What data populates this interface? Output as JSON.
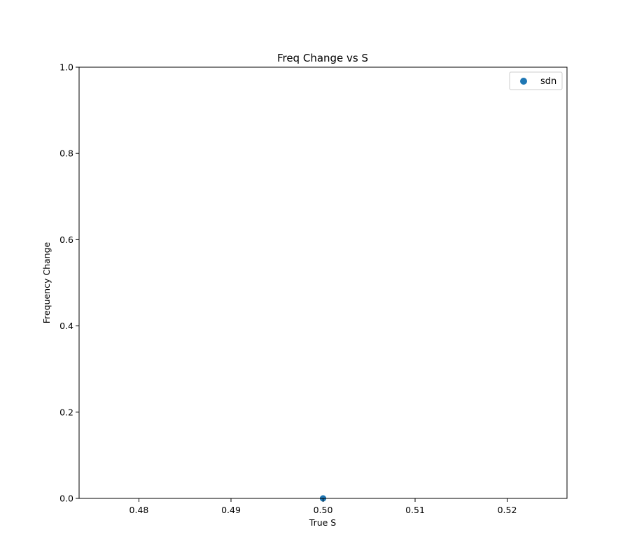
{
  "chart_data": {
    "type": "scatter",
    "title": "Freq Change vs S",
    "xlabel": "True S",
    "ylabel": "Frequency Change",
    "xlim": [
      0.4735,
      0.5265
    ],
    "ylim": [
      0.0,
      1.0
    ],
    "x_ticks": [
      0.48,
      0.49,
      0.5,
      0.51,
      0.52
    ],
    "x_tick_labels": [
      "0.48",
      "0.49",
      "0.50",
      "0.51",
      "0.52"
    ],
    "y_ticks": [
      0.0,
      0.2,
      0.4,
      0.6,
      0.8,
      1.0
    ],
    "y_tick_labels": [
      "0.0",
      "0.2",
      "0.4",
      "0.6",
      "0.8",
      "1.0"
    ],
    "grid": false,
    "legend_position": "top-right",
    "series": [
      {
        "name": "sdn",
        "color": "#1f77b4",
        "x": [
          0.5,
          0.5,
          0.5
        ],
        "y": [
          0.0,
          0.0,
          0.0
        ]
      }
    ]
  }
}
